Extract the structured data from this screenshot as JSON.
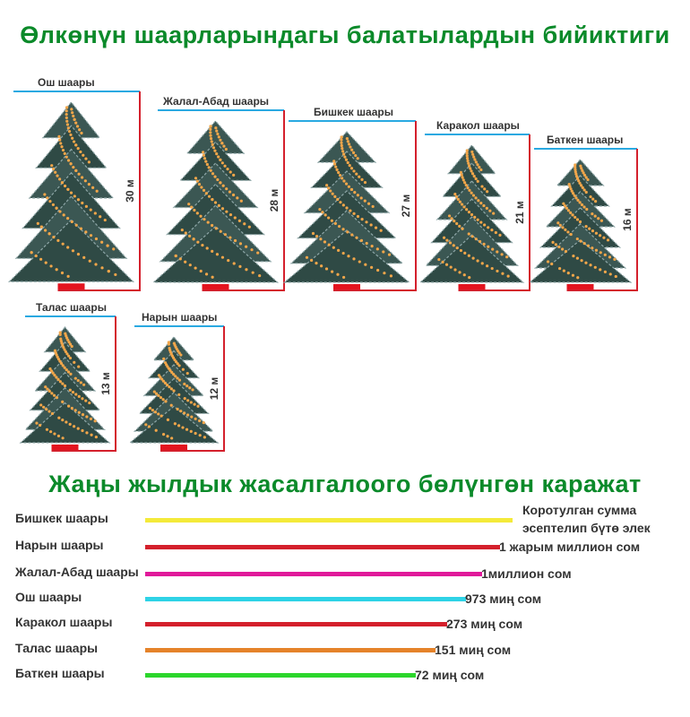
{
  "title_trees": "Өлкөнүн шаарларындагы балатылардын бийиктиги",
  "title_budget": "Жаңы жылдык жасалгалоого бөлүнгөн каражат",
  "colors": {
    "title": "#0b8a2a",
    "top_line": "#29a9e1",
    "height_line": "#d4202c",
    "stand": "#e3141f"
  },
  "chart_data": [
    {
      "type": "bar",
      "title": "Өлкөнүн шаарларындагы балатылардын бийиктиги",
      "categories": [
        "Ош шаары",
        "Жалал-Абад шаары",
        "Бишкек шаары",
        "Каракол шаары",
        "Баткен шаары",
        "Талас шаары",
        "Нарын шаары"
      ],
      "values": [
        30,
        28,
        27,
        21,
        16,
        13,
        12
      ],
      "value_labels": [
        "30 м",
        "28 м",
        "27 м",
        "21 м",
        "16 м",
        "13 м",
        "12 м"
      ],
      "unit": "м"
    },
    {
      "type": "bar",
      "title": "Жаңы жылдык жасалгалоого бөлүнгөн каражат",
      "categories": [
        "Бишкек шаары",
        "Нарын шаары",
        "Жалал-Абад шаары",
        "Ош шаары",
        "Каракол шаары",
        "Талас шаары",
        "Баткен шаары"
      ],
      "value_labels": [
        "Коротулган сумма эсептелип бүтө элек",
        "1 жарым миллион сом",
        "1миллион сом",
        "973 миң сом",
        "273 миң сом",
        "151 миң сом",
        "72 миң сом"
      ],
      "bar_colors": [
        "#f4ea3a",
        "#d4202c",
        "#e0199a",
        "#2ed3e6",
        "#d4202c",
        "#e5832a",
        "#2cd62c"
      ],
      "bar_fraction": [
        1.0,
        0.966,
        0.917,
        0.873,
        0.822,
        0.791,
        0.736
      ]
    }
  ]
}
